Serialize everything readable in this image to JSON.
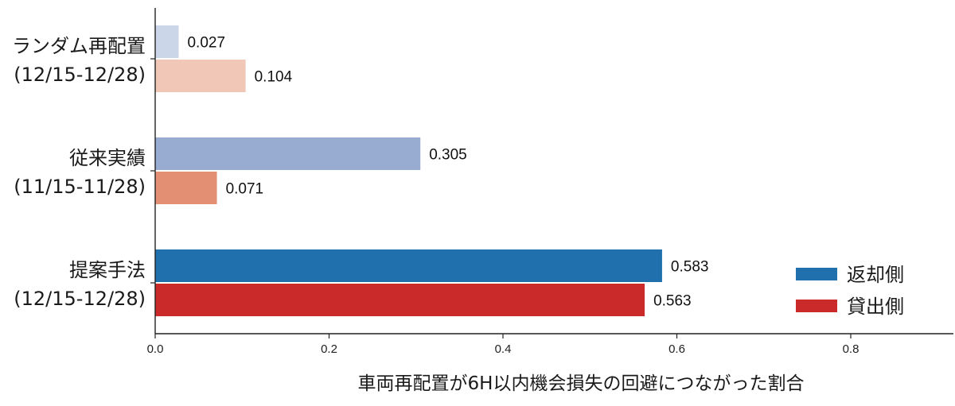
{
  "chart_data": {
    "type": "bar",
    "orientation": "horizontal",
    "categories": [
      {
        "line1": "ランダム再配置",
        "line2": "(12/15-12/28)"
      },
      {
        "line1": "従来実績",
        "line2": "(11/15-11/28)"
      },
      {
        "line1": "提案手法",
        "line2": "(12/15-12/28)"
      }
    ],
    "series": [
      {
        "name": "返却側",
        "values": [
          0.027,
          0.305,
          0.583
        ],
        "labels": [
          "0.027",
          "0.305",
          "0.583"
        ],
        "colors": [
          "#cbd6e8",
          "#97acd0",
          "#1f70ad"
        ]
      },
      {
        "name": "貸出側",
        "values": [
          0.104,
          0.071,
          0.563
        ],
        "labels": [
          "0.104",
          "0.071",
          "0.563"
        ],
        "colors": [
          "#f1c8b8",
          "#e28f74",
          "#cb2a2a"
        ]
      }
    ],
    "legend_colors": [
      "#1f70ad",
      "#cb2a2a"
    ],
    "xlabel": "車両再配置が6H以内機会損失の回避につながった割合",
    "ylabel": "",
    "xlim": [
      0,
      0.9
    ],
    "xticks": [
      "0.0",
      "0.2",
      "0.4",
      "0.6",
      "0.8"
    ],
    "grid": false,
    "legend_position": "bottom-right"
  }
}
